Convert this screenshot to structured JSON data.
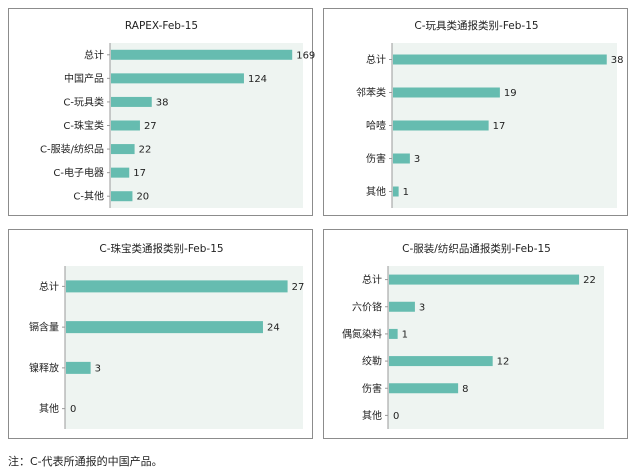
{
  "chart_data": [
    {
      "type": "bar",
      "orientation": "horizontal",
      "title": "RAPEX-Feb-15",
      "categories": [
        "总计",
        "中国产品",
        "C-玩具类",
        "C-珠宝类",
        "C-服装/纺织品",
        "C-电子电器",
        "C-其他"
      ],
      "values": [
        169,
        124,
        38,
        27,
        22,
        17,
        20
      ],
      "xlim": [
        0,
        180
      ],
      "data_labels": true,
      "grid": false,
      "bar_color": "#66bcb0",
      "plot_bg_color": "#eef4f1"
    },
    {
      "type": "bar",
      "orientation": "horizontal",
      "title": "C-玩具类通报类别-Feb-15",
      "categories": [
        "总计",
        "邻苯类",
        "哈噎",
        "伤害",
        "其他"
      ],
      "values": [
        38,
        19,
        17,
        3,
        1
      ],
      "xlim": [
        0,
        40
      ],
      "data_labels": true,
      "grid": false,
      "bar_color": "#66bcb0",
      "plot_bg_color": "#eef4f1"
    },
    {
      "type": "bar",
      "orientation": "horizontal",
      "title": "C-珠宝类通报类别-Feb-15",
      "categories": [
        "总计",
        "镉含量",
        "镍释放",
        "其他"
      ],
      "values": [
        27,
        24,
        3,
        0
      ],
      "xlim": [
        0,
        29
      ],
      "data_labels": true,
      "grid": false,
      "bar_color": "#66bcb0",
      "plot_bg_color": "#eef4f1"
    },
    {
      "type": "bar",
      "orientation": "horizontal",
      "title": "C-服装/纺织品通报类别-Feb-15",
      "categories": [
        "总计",
        "六价铬",
        "偶氮染料",
        "绞勒",
        "伤害",
        "其他"
      ],
      "values": [
        22,
        3,
        1,
        12,
        8,
        0
      ],
      "xlim": [
        0,
        25
      ],
      "data_labels": true,
      "grid": false,
      "bar_color": "#66bcb0",
      "plot_bg_color": "#eef4f1"
    }
  ],
  "footnote": "注：C-代表所通报的中国产品。"
}
